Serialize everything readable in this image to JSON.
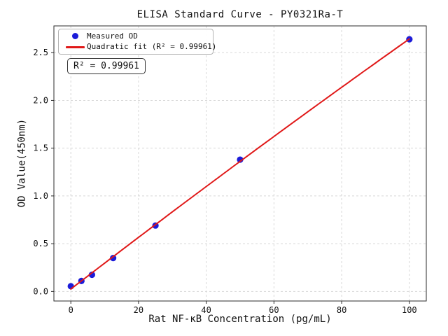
{
  "chart_data": {
    "type": "scatter",
    "title": "ELISA Standard Curve - PY0321Ra-T",
    "xlabel": "Rat NF-κB Concentration (pg/mL)",
    "ylabel": "OD Value(450nm)",
    "series": [
      {
        "name": "Measured OD",
        "type": "scatter",
        "color": "#1c1cd9",
        "x": [
          0,
          3.125,
          6.25,
          12.5,
          25,
          50,
          100
        ],
        "y": [
          0.055,
          0.11,
          0.175,
          0.35,
          0.69,
          1.38,
          2.64
        ]
      },
      {
        "name": "Quadratic fit (R² = 0.99961)",
        "type": "quadratic-fit",
        "color": "#e01818",
        "fit_of": "Measured OD",
        "r_squared": 0.99961
      }
    ],
    "annotation_text": "R² = 0.99961",
    "legend": {
      "position": "upper-left",
      "entries": [
        {
          "label": "Measured OD",
          "marker": "dot",
          "color": "#1c1cd9"
        },
        {
          "label": "Quadratic fit (R² = 0.99961)",
          "marker": "line",
          "color": "#e01818"
        }
      ]
    },
    "x_ticks": {
      "values": [
        0,
        20,
        40,
        60,
        80,
        100
      ],
      "labels": [
        "0",
        "20",
        "40",
        "60",
        "80",
        "100"
      ]
    },
    "y_ticks": {
      "values": [
        0,
        0.5,
        1,
        1.5,
        2,
        2.5
      ],
      "labels": [
        "0.0",
        "0.5",
        "1.0",
        "1.5",
        "2.0",
        "2.5"
      ]
    },
    "xlim": [
      -5,
      105
    ],
    "ylim": [
      -0.1,
      2.78
    ],
    "grid": {
      "visible": true,
      "style": "dashed",
      "color": "#d8d8d8"
    },
    "axis_color": "#2b2b2b",
    "text_color": "#111111"
  }
}
